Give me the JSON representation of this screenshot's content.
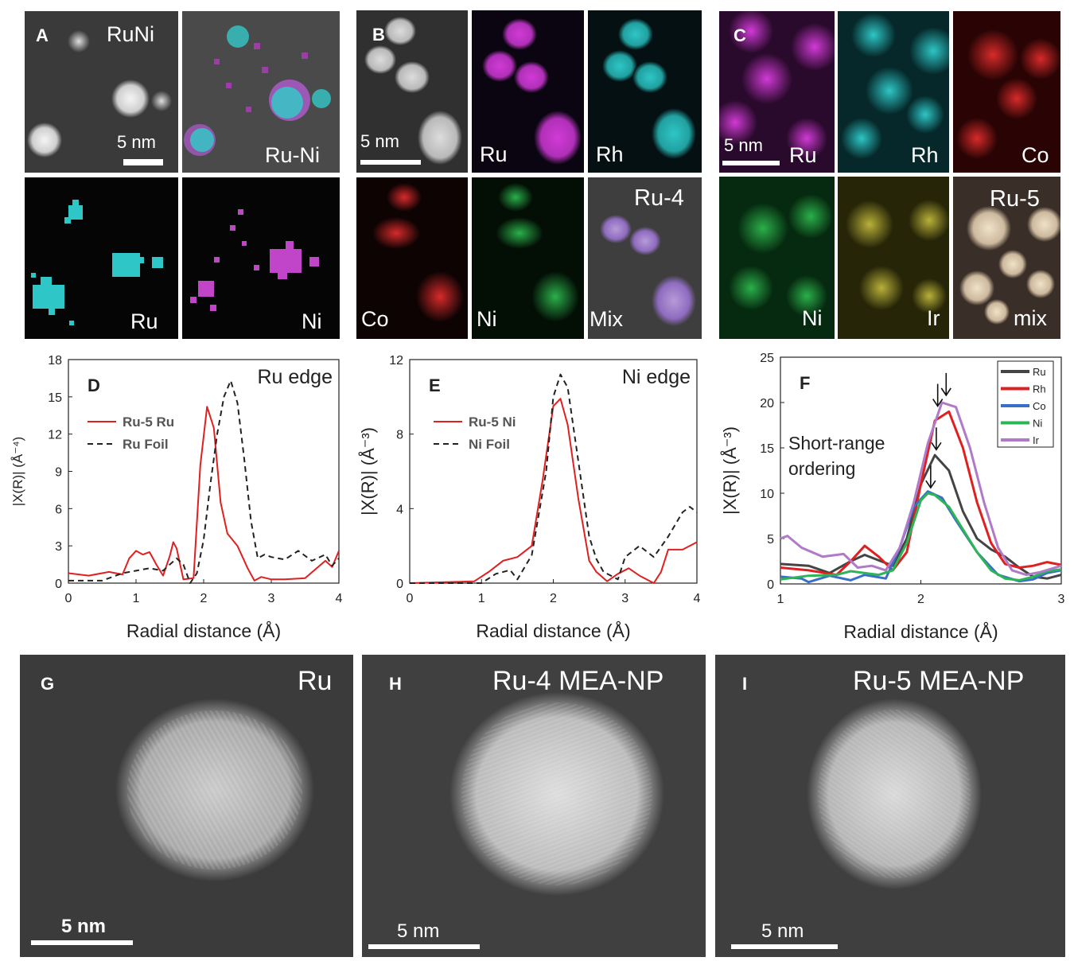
{
  "panelA": {
    "letter": "A",
    "title": "RuNi",
    "scale": "5 nm",
    "tiles": {
      "merge": "Ru-Ni",
      "ru": "Ru",
      "ni": "Ni"
    }
  },
  "panelB": {
    "letter": "B",
    "scale": "5 nm",
    "tiles": {
      "ru": "Ru",
      "rh": "Rh",
      "co": "Co",
      "ni": "Ni",
      "mix": "Mix",
      "title": "Ru-4"
    }
  },
  "panelC": {
    "letter": "C",
    "scale": "5 nm",
    "tiles": {
      "ru": "Ru",
      "rh": "Rh",
      "co": "Co",
      "ni": "Ni",
      "ir": "Ir",
      "mix": "mix",
      "title": "Ru-5"
    }
  },
  "panelG": {
    "letter": "G",
    "title": "Ru",
    "scale": "5 nm"
  },
  "panelH": {
    "letter": "H",
    "title": "Ru-4 MEA-NP",
    "scale": "5 nm"
  },
  "panelI": {
    "letter": "I",
    "title": "Ru-5 MEA-NP",
    "scale": "5 nm"
  },
  "colors": {
    "ru": "#d13ad6",
    "rh": "#2ec6c6",
    "co": "#d82a2a",
    "ni": "#2bb04a",
    "ir": "#b9b13a",
    "red": "#e02020",
    "gray": "#444444",
    "blue": "#3a6fc8",
    "green": "#2cb456",
    "purple": "#b07ac8"
  },
  "chart_data": [
    {
      "panel": "D",
      "type": "line",
      "title": "Ru edge",
      "xlabel": "Radial distance (Å)",
      "ylabel": "|X(R)| (Å⁻⁴)",
      "xlim": [
        0,
        4
      ],
      "ylim": [
        0,
        18
      ],
      "xticks": [
        "0",
        "1",
        "2",
        "3",
        "4"
      ],
      "yticks": [
        "0",
        "3",
        "6",
        "9",
        "12",
        "15",
        "18"
      ],
      "series": [
        {
          "name": "Ru-5 Ru",
          "style": "solid",
          "color": "#e02020",
          "x": [
            0,
            0.3,
            0.6,
            0.8,
            0.9,
            1.0,
            1.1,
            1.2,
            1.3,
            1.4,
            1.5,
            1.55,
            1.6,
            1.7,
            1.85,
            1.95,
            2.05,
            2.15,
            2.25,
            2.35,
            2.5,
            2.65,
            2.75,
            2.85,
            3.0,
            3.2,
            3.5,
            3.8,
            3.9,
            4.0
          ],
          "y": [
            0.8,
            0.6,
            0.9,
            0.7,
            2.0,
            2.6,
            2.3,
            2.5,
            1.5,
            0.6,
            2.2,
            3.3,
            2.8,
            0.3,
            0.4,
            9.5,
            14.2,
            12.5,
            6.5,
            4.0,
            3.0,
            1.2,
            0.2,
            0.5,
            0.3,
            0.3,
            0.4,
            1.8,
            1.3,
            2.6
          ]
        },
        {
          "name": "Ru Foil",
          "style": "dashed",
          "color": "#222222",
          "x": [
            0,
            0.5,
            0.8,
            1.0,
            1.2,
            1.4,
            1.6,
            1.7,
            1.8,
            1.9,
            2.0,
            2.1,
            2.2,
            2.3,
            2.4,
            2.5,
            2.6,
            2.7,
            2.8,
            2.9,
            3.0,
            3.2,
            3.4,
            3.6,
            3.8,
            3.9,
            4.0
          ],
          "y": [
            0.2,
            0.2,
            0.8,
            1.0,
            1.2,
            1.0,
            2.0,
            1.5,
            0.0,
            0.8,
            3.5,
            8.0,
            12.0,
            15.0,
            16.3,
            14.5,
            10.0,
            5.0,
            2.0,
            2.3,
            2.1,
            1.9,
            2.6,
            1.8,
            2.3,
            1.4,
            2.0
          ]
        }
      ]
    },
    {
      "panel": "E",
      "type": "line",
      "title": "Ni edge",
      "xlabel": "Radial distance (Å)",
      "ylabel": "|X(R)| (Å⁻³)",
      "xlim": [
        0,
        4
      ],
      "ylim": [
        0,
        12
      ],
      "xticks": [
        "0",
        "1",
        "2",
        "3",
        "4"
      ],
      "yticks": [
        "0",
        "4",
        "8",
        "12"
      ],
      "series": [
        {
          "name": "Ru-5 Ni",
          "style": "solid",
          "color": "#e02020",
          "x": [
            0,
            0.9,
            1.1,
            1.3,
            1.5,
            1.7,
            1.85,
            2.0,
            2.1,
            2.2,
            2.35,
            2.5,
            2.6,
            2.75,
            2.9,
            3.05,
            3.2,
            3.4,
            3.5,
            3.6,
            3.8,
            4.0
          ],
          "y": [
            0,
            0.1,
            0.6,
            1.2,
            1.4,
            2.0,
            5.5,
            9.5,
            9.9,
            8.5,
            4.5,
            1.2,
            0.6,
            0.1,
            0.5,
            0.8,
            0.4,
            0.0,
            0.6,
            1.8,
            1.8,
            2.2
          ]
        },
        {
          "name": "Ni Foil",
          "style": "dashed",
          "color": "#222222",
          "x": [
            0,
            1.0,
            1.2,
            1.4,
            1.5,
            1.7,
            1.9,
            2.0,
            2.1,
            2.2,
            2.35,
            2.5,
            2.6,
            2.7,
            2.9,
            3.0,
            3.2,
            3.4,
            3.6,
            3.8,
            3.9,
            4.0
          ],
          "y": [
            0,
            0.0,
            0.5,
            0.7,
            0.2,
            1.5,
            6.0,
            10.0,
            11.2,
            10.5,
            6.5,
            2.5,
            1.3,
            0.6,
            0.2,
            1.4,
            2.0,
            1.4,
            2.5,
            3.8,
            4.1,
            3.8
          ]
        }
      ]
    },
    {
      "panel": "F",
      "type": "line",
      "title": "",
      "annotation": "Short-range ordering",
      "xlabel": "Radial distance (Å)",
      "ylabel": "|X(R)| (Å⁻³)",
      "xlim": [
        1,
        3
      ],
      "ylim": [
        0,
        25
      ],
      "xticks": [
        "1",
        "2",
        "3"
      ],
      "yticks": [
        "0",
        "5",
        "10",
        "15",
        "20",
        "25"
      ],
      "series": [
        {
          "name": "Ru",
          "color": "#444444",
          "x": [
            1.0,
            1.2,
            1.35,
            1.5,
            1.6,
            1.7,
            1.8,
            1.9,
            2.0,
            2.1,
            2.2,
            2.3,
            2.4,
            2.5,
            2.6,
            2.7,
            2.8,
            2.9,
            3.0
          ],
          "y": [
            2.2,
            2.0,
            1.2,
            2.5,
            3.2,
            2.6,
            2.0,
            5.0,
            11.0,
            14.2,
            12.5,
            8.0,
            5.0,
            3.8,
            3.0,
            1.8,
            0.8,
            0.6,
            1.0
          ]
        },
        {
          "name": "Rh",
          "color": "#e02020",
          "x": [
            1.0,
            1.2,
            1.4,
            1.5,
            1.6,
            1.7,
            1.8,
            1.9,
            2.0,
            2.1,
            2.2,
            2.3,
            2.4,
            2.5,
            2.6,
            2.7,
            2.8,
            2.9,
            3.0
          ],
          "y": [
            1.8,
            1.5,
            1.0,
            2.5,
            4.2,
            3.0,
            1.5,
            3.5,
            11.0,
            18.0,
            19.0,
            15.0,
            9.0,
            4.5,
            2.2,
            1.8,
            2.0,
            2.4,
            2.1
          ]
        },
        {
          "name": "Co",
          "color": "#3a6fc8",
          "x": [
            1.0,
            1.15,
            1.2,
            1.35,
            1.5,
            1.6,
            1.75,
            1.85,
            1.95,
            2.05,
            2.15,
            2.25,
            2.4,
            2.55,
            2.7,
            2.8,
            2.9,
            3.0
          ],
          "y": [
            0.8,
            0.6,
            0.2,
            0.9,
            0.4,
            1.0,
            0.6,
            4.0,
            8.5,
            10.2,
            9.5,
            7.0,
            3.5,
            1.0,
            0.3,
            0.5,
            1.2,
            1.5
          ]
        },
        {
          "name": "Ni",
          "color": "#2cb456",
          "x": [
            1.0,
            1.2,
            1.4,
            1.5,
            1.6,
            1.7,
            1.8,
            1.9,
            2.0,
            2.05,
            2.1,
            2.2,
            2.3,
            2.4,
            2.5,
            2.6,
            2.7,
            2.8,
            2.9,
            3.0
          ],
          "y": [
            0.5,
            0.9,
            1.0,
            1.4,
            1.2,
            1.0,
            1.5,
            4.5,
            9.2,
            10.0,
            9.8,
            8.5,
            6.0,
            3.5,
            1.5,
            0.6,
            0.4,
            0.8,
            1.4,
            1.6
          ]
        },
        {
          "name": "Ir",
          "color": "#b07ac8",
          "x": [
            1.0,
            1.05,
            1.15,
            1.3,
            1.45,
            1.55,
            1.65,
            1.75,
            1.85,
            1.95,
            2.05,
            2.15,
            2.25,
            2.35,
            2.45,
            2.55,
            2.65,
            2.75,
            2.85,
            3.0
          ],
          "y": [
            5.0,
            5.3,
            4.0,
            3.0,
            3.3,
            1.8,
            2.0,
            1.5,
            4.0,
            9.0,
            15.5,
            20.0,
            19.5,
            15.0,
            9.0,
            4.0,
            1.5,
            1.0,
            1.3,
            2.0
          ]
        }
      ],
      "arrows_x": [
        2.05,
        2.1,
        2.15,
        2.2
      ]
    }
  ]
}
